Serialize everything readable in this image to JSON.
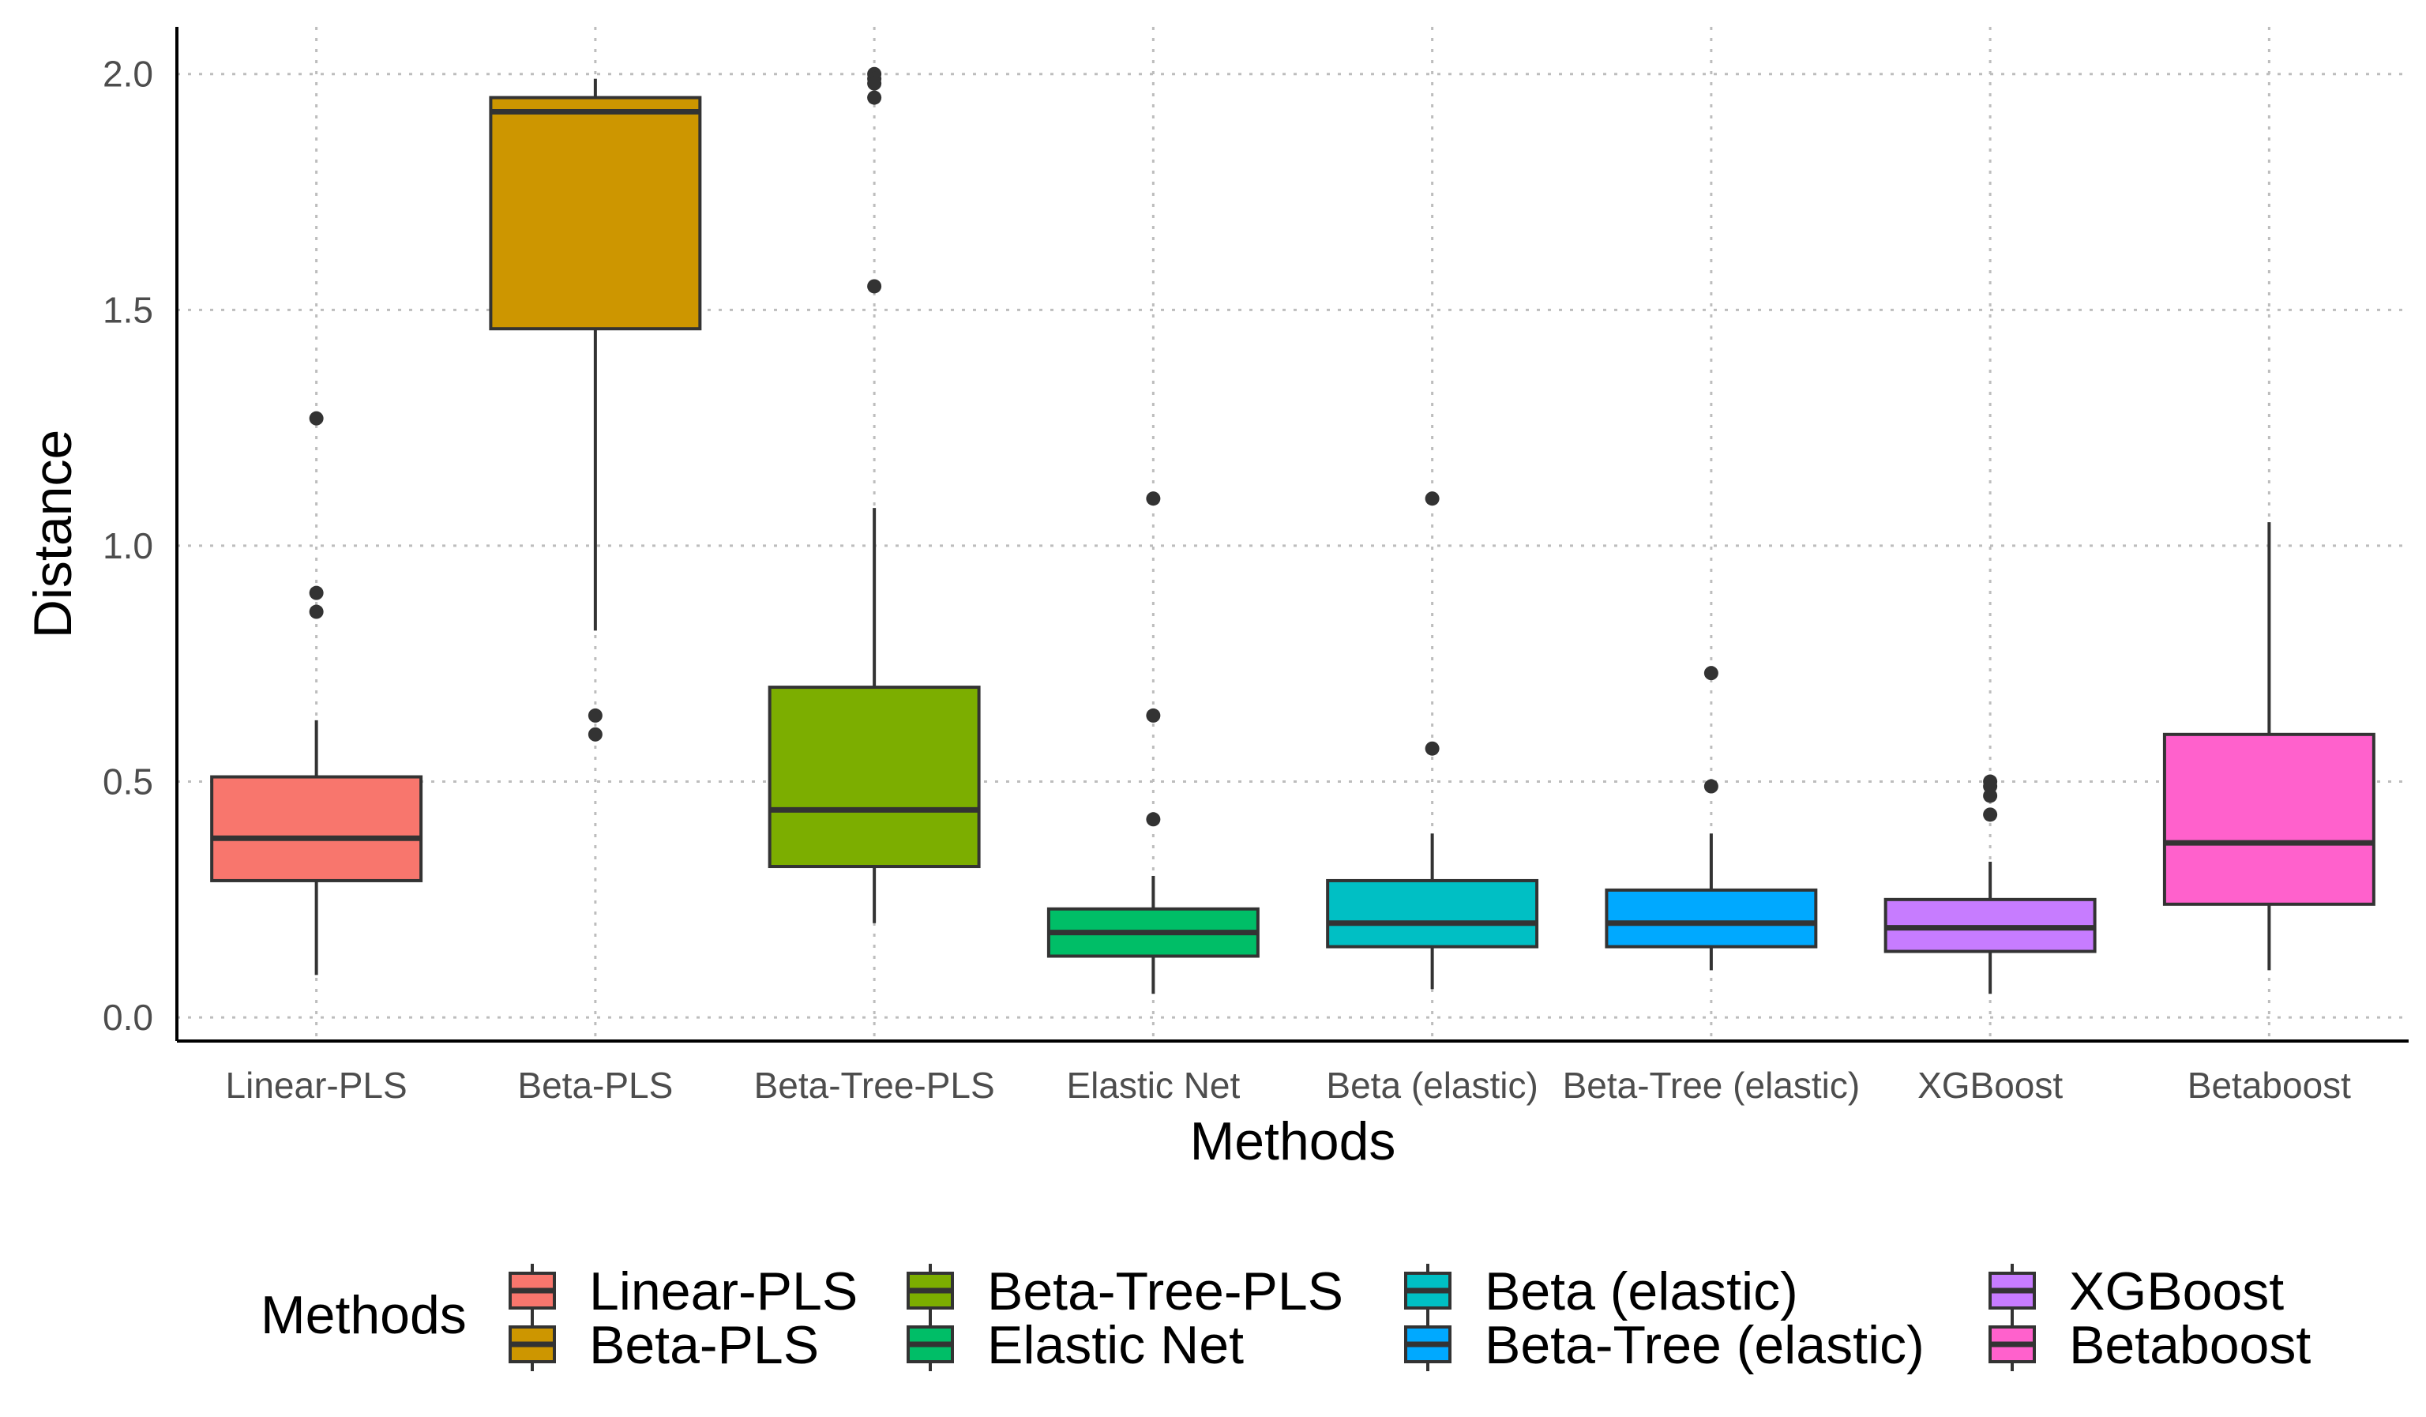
{
  "chart_data": {
    "type": "boxplot",
    "title": "",
    "xlabel": "Methods",
    "ylabel": "Distance",
    "ylim": [
      -0.05,
      2.1
    ],
    "yticks": [
      0.0,
      0.5,
      1.0,
      1.5,
      2.0
    ],
    "ytick_labels": [
      "0.0",
      "0.5",
      "1.0",
      "1.5",
      "2.0"
    ],
    "grid": "dotted major gridlines",
    "legend": {
      "title": "Methods",
      "placement": "bottom"
    },
    "categories": [
      "Linear-PLS",
      "Beta-PLS",
      "Beta-Tree-PLS",
      "Elastic Net",
      "Beta (elastic)",
      "Beta-Tree (elastic)",
      "XGBoost",
      "Betaboost"
    ],
    "series": [
      {
        "name": "Linear-PLS",
        "color": "#F8766D",
        "whisker_low": 0.09,
        "q1": 0.29,
        "median": 0.38,
        "q3": 0.51,
        "whisker_high": 0.63,
        "outliers": [
          1.27,
          0.9,
          0.86
        ]
      },
      {
        "name": "Beta-PLS",
        "color": "#CD9600",
        "whisker_low": 0.82,
        "q1": 1.46,
        "median": 1.92,
        "q3": 1.95,
        "whisker_high": 1.99,
        "outliers": [
          0.64,
          0.6
        ]
      },
      {
        "name": "Beta-Tree-PLS",
        "color": "#7CAE00",
        "whisker_low": 0.2,
        "q1": 0.32,
        "median": 0.44,
        "q3": 0.7,
        "whisker_high": 1.08,
        "outliers": [
          2.0,
          1.99,
          1.98,
          1.95,
          1.55
        ]
      },
      {
        "name": "Elastic Net",
        "color": "#00BE67",
        "whisker_low": 0.05,
        "q1": 0.13,
        "median": 0.18,
        "q3": 0.23,
        "whisker_high": 0.3,
        "outliers": [
          1.1,
          0.64,
          0.42
        ]
      },
      {
        "name": "Beta (elastic)",
        "color": "#00BFC4",
        "whisker_low": 0.06,
        "q1": 0.15,
        "median": 0.2,
        "q3": 0.29,
        "whisker_high": 0.39,
        "outliers": [
          1.1,
          0.57
        ]
      },
      {
        "name": "Beta-Tree (elastic)",
        "color": "#00A9FF",
        "whisker_low": 0.1,
        "q1": 0.15,
        "median": 0.2,
        "q3": 0.27,
        "whisker_high": 0.39,
        "outliers": [
          0.73,
          0.49
        ]
      },
      {
        "name": "XGBoost",
        "color": "#C77CFF",
        "whisker_low": 0.05,
        "q1": 0.14,
        "median": 0.19,
        "q3": 0.25,
        "whisker_high": 0.33,
        "outliers": [
          0.5,
          0.49,
          0.47,
          0.43
        ]
      },
      {
        "name": "Betaboost",
        "color": "#FF61CC",
        "whisker_low": 0.1,
        "q1": 0.24,
        "median": 0.37,
        "q3": 0.6,
        "whisker_high": 1.05,
        "outliers": []
      }
    ]
  }
}
